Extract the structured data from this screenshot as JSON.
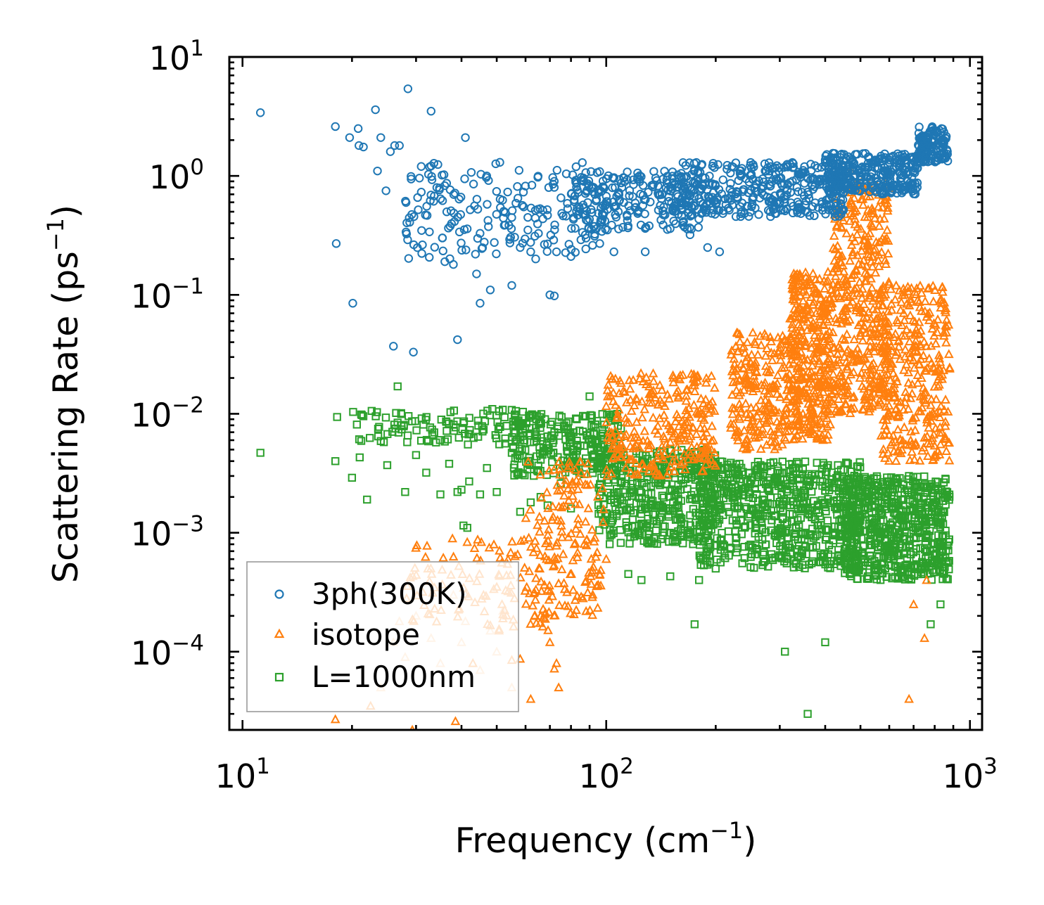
{
  "chart_data": {
    "type": "scatter",
    "title": "",
    "xlabel": "Frequency",
    "xlabel_unit_base": "cm",
    "xlabel_unit_exp": "−1",
    "ylabel": "Scattering Rate",
    "ylabel_unit_base": "ps",
    "ylabel_unit_exp": "−1",
    "xscale": "log",
    "yscale": "log",
    "xlim": [
      9.2,
      1080
    ],
    "ylim": [
      2.2e-05,
      10
    ],
    "xticks": [
      {
        "value": 10,
        "base": "10",
        "exp": "1"
      },
      {
        "value": 100,
        "base": "10",
        "exp": "2"
      },
      {
        "value": 1000,
        "base": "10",
        "exp": "3"
      }
    ],
    "yticks": [
      {
        "value": 10,
        "base": "10",
        "exp": "1"
      },
      {
        "value": 1,
        "base": "10",
        "exp": "0"
      },
      {
        "value": 0.1,
        "base": "10",
        "exp": "−1"
      },
      {
        "value": 0.01,
        "base": "10",
        "exp": "−2"
      },
      {
        "value": 0.001,
        "base": "10",
        "exp": "−3"
      },
      {
        "value": 0.0001,
        "base": "10",
        "exp": "−4"
      }
    ],
    "legend_position": "bottom-left",
    "series": [
      {
        "name": "3ph(300K)",
        "marker": "circle",
        "color": "#1f77b4",
        "points": [
          [
            11.2,
            3.4
          ],
          [
            18,
            2.6
          ],
          [
            18.1,
            0.27
          ],
          [
            19.7,
            2.1
          ],
          [
            20.1,
            0.085
          ],
          [
            20.8,
            2.5
          ],
          [
            20.9,
            1.8
          ],
          [
            21.5,
            1.75
          ],
          [
            23.2,
            3.6
          ],
          [
            23.5,
            1.1
          ],
          [
            24.0,
            2.1
          ],
          [
            24.8,
            0.75
          ],
          [
            25.5,
            1.6
          ],
          [
            26.2,
            1.8
          ],
          [
            26.0,
            0.037
          ],
          [
            27.0,
            1.8
          ],
          [
            28.5,
            5.4
          ],
          [
            29.5,
            0.033
          ],
          [
            31,
            1.2
          ],
          [
            33,
            3.5
          ],
          [
            36,
            0.19
          ],
          [
            38,
            0.18
          ],
          [
            39,
            0.042
          ],
          [
            41,
            2.1
          ],
          [
            44,
            0.15
          ],
          [
            45,
            0.085
          ],
          [
            48,
            0.11
          ],
          [
            51,
            1.3
          ],
          [
            55,
            0.12
          ],
          [
            58,
            0.25
          ],
          [
            62,
            0.23
          ],
          [
            70,
            0.1
          ],
          [
            72,
            0.098
          ],
          [
            73,
            0.23
          ],
          [
            80,
            0.21
          ],
          [
            88,
            0.3
          ],
          [
            96,
            0.27
          ],
          [
            105,
            0.23
          ],
          [
            128,
            0.23
          ],
          [
            170,
            0.32
          ],
          [
            190,
            0.25
          ],
          [
            205,
            0.23
          ],
          [
            235,
            0.5
          ],
          [
            470,
            1.4
          ],
          [
            600,
            1.3
          ],
          [
            690,
            0.85
          ],
          [
            760,
            1.55
          ]
        ],
        "bands": [
          {
            "x_range": [
              28,
              100
            ],
            "y_range": [
              0.2,
              1.3
            ],
            "count": 200
          },
          {
            "x_range": [
              80,
              180
            ],
            "y_range": [
              0.35,
              1.1
            ],
            "count": 220
          },
          {
            "x_range": [
              150,
              450
            ],
            "y_range": [
              0.45,
              1.3
            ],
            "count": 380
          },
          {
            "x_range": [
              400,
              720
            ],
            "y_range": [
              0.7,
              1.55
            ],
            "count": 320
          },
          {
            "x_range": [
              720,
              870
            ],
            "y_range": [
              1.3,
              2.6
            ],
            "count": 130
          }
        ]
      },
      {
        "name": "isotope",
        "marker": "triangle",
        "color": "#ff7f0e",
        "points": [
          [
            18,
            2.7e-05
          ],
          [
            22.5,
            3.5e-05
          ],
          [
            29.3,
            2.2e-05
          ],
          [
            38.5,
            2.6e-05
          ],
          [
            43,
            8e-05
          ],
          [
            46,
            0.0003
          ],
          [
            50,
            0.00035
          ],
          [
            52,
            0.00019
          ],
          [
            55,
            8.5e-05
          ],
          [
            58,
            8.7e-05
          ],
          [
            62,
            4e-05
          ],
          [
            66,
            0.0002
          ],
          [
            70,
            0.00012
          ],
          [
            72,
            7.2e-05
          ],
          [
            73,
            8e-05
          ],
          [
            74,
            5e-05
          ],
          [
            100,
            0.0006
          ],
          [
            265,
            0.045
          ],
          [
            350,
            0.11
          ],
          [
            470,
            1.1
          ],
          [
            560,
            0.55
          ],
          [
            630,
            0.033
          ],
          [
            680,
            4e-05
          ],
          [
            700,
            0.00025
          ],
          [
            750,
            0.00013
          ],
          [
            760,
            0.0004
          ],
          [
            860,
            0.0062
          ],
          [
            835,
            0.085
          ]
        ],
        "light_points": [
          [
            24,
            5e-05
          ],
          [
            26,
            0.00012
          ],
          [
            27,
            0.00018
          ],
          [
            28,
            9e-05
          ],
          [
            30,
            0.0002
          ],
          [
            33,
            0.00013
          ],
          [
            35,
            8e-05
          ],
          [
            38,
            0.0003
          ],
          [
            40,
            0.00012
          ],
          [
            41,
            0.00018
          ],
          [
            45,
            7e-05
          ],
          [
            48,
            0.00015
          ],
          [
            50,
            0.0001
          ],
          [
            52,
            0.00022
          ],
          [
            55,
            5e-05
          ]
        ],
        "bands": [
          {
            "x_range": [
              28,
              70
            ],
            "y_range": [
              0.00015,
              0.0009
            ],
            "count": 110
          },
          {
            "x_range": [
              60,
              100
            ],
            "y_range": [
              0.0002,
              0.004
            ],
            "count": 160
          },
          {
            "x_range": [
              100,
              200
            ],
            "y_range": [
              0.003,
              0.022
            ],
            "count": 280
          },
          {
            "x_range": [
              220,
              340
            ],
            "y_range": [
              0.005,
              0.05
            ],
            "count": 260
          },
          {
            "x_range": [
              320,
              420
            ],
            "y_range": [
              0.006,
              0.16
            ],
            "count": 340
          },
          {
            "x_range": [
              420,
              600
            ],
            "y_range": [
              0.01,
              0.9
            ],
            "count": 420
          },
          {
            "x_range": [
              560,
              880
            ],
            "y_range": [
              0.004,
              0.12
            ],
            "count": 320
          }
        ]
      },
      {
        "name": "L=1000nm",
        "marker": "square",
        "color": "#2ca02c",
        "points": [
          [
            11.2,
            0.0047
          ],
          [
            18,
            0.004
          ],
          [
            18.2,
            0.0094
          ],
          [
            20,
            0.0029
          ],
          [
            21,
            0.0043
          ],
          [
            22,
            0.0019
          ],
          [
            24,
            0.0059
          ],
          [
            25,
            0.0037
          ],
          [
            26.7,
            0.017
          ],
          [
            28,
            0.0022
          ],
          [
            30,
            0.0045
          ],
          [
            32,
            0.0032
          ],
          [
            35,
            0.0021
          ],
          [
            37,
            0.0038
          ],
          [
            39,
            0.0022
          ],
          [
            40,
            0.0023
          ],
          [
            42,
            0.0027
          ],
          [
            45,
            0.0021
          ],
          [
            47,
            0.0035
          ],
          [
            50,
            0.0022
          ],
          [
            55,
            0.0047
          ],
          [
            58,
            0.0015
          ],
          [
            62,
            0.0018
          ],
          [
            66,
            0.002
          ],
          [
            69,
            0.0017
          ],
          [
            75,
            0.0026
          ],
          [
            80,
            0.0016
          ],
          [
            40.5,
            0.00115
          ],
          [
            41.5,
            0.0011
          ],
          [
            83,
            0.009
          ],
          [
            90,
            0.014
          ],
          [
            115,
            0.00045
          ],
          [
            125,
            0.0004
          ],
          [
            150,
            0.00043
          ],
          [
            180,
            0.0004
          ],
          [
            200,
            0.0005
          ],
          [
            175,
            0.00017
          ],
          [
            310,
            0.0001
          ],
          [
            358,
            3e-05
          ],
          [
            400,
            0.00012
          ],
          [
            780,
            0.00017
          ],
          [
            830,
            0.00025
          ]
        ],
        "bands": [
          {
            "x_range": [
              20,
              60
            ],
            "y_range": [
              0.0055,
              0.011
            ],
            "count": 110
          },
          {
            "x_range": [
              55,
              110
            ],
            "y_range": [
              0.003,
              0.01
            ],
            "count": 260
          },
          {
            "x_range": [
              95,
              200
            ],
            "y_range": [
              0.0008,
              0.005
            ],
            "count": 420
          },
          {
            "x_range": [
              180,
              500
            ],
            "y_range": [
              0.0005,
              0.004
            ],
            "count": 680
          },
          {
            "x_range": [
              450,
              880
            ],
            "y_range": [
              0.0004,
              0.003
            ],
            "count": 620
          }
        ]
      }
    ]
  }
}
